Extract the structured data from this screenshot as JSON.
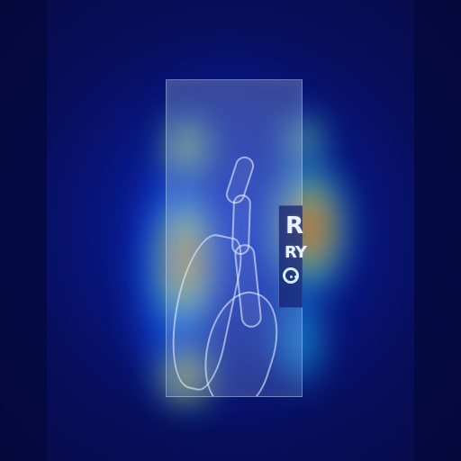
{
  "image": {
    "marker": {
      "letter_top": "R",
      "letter_mid": "RY"
    }
  },
  "colors": {
    "background": "#0a0f5a",
    "panel": "#b8d4ff",
    "heat_low": "#1c52ff",
    "heat_mid": "#1fd0ff",
    "heat_high": "#f4f41a",
    "heat_peak": "#ff2a10"
  }
}
